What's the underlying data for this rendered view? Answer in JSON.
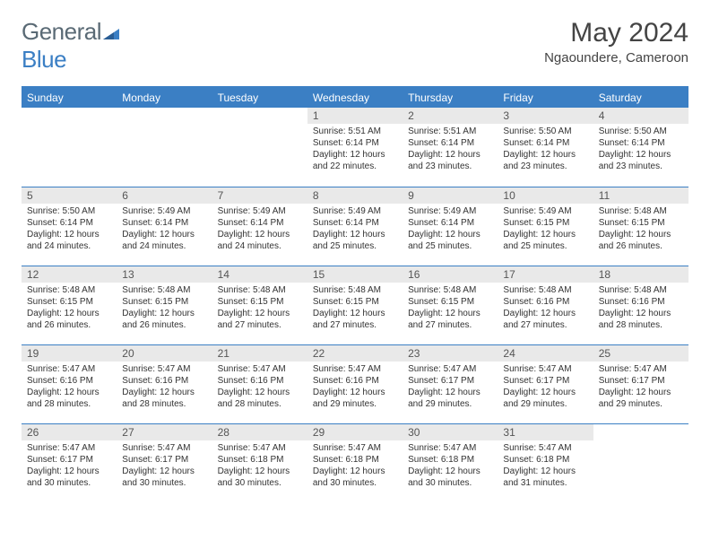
{
  "logo": {
    "text1": "General",
    "text2": "Blue"
  },
  "title": "May 2024",
  "location": "Ngaoundere, Cameroon",
  "colors": {
    "header_bg": "#3b7fc4",
    "header_fg": "#ffffff",
    "daynum_bg": "#e9e9e9",
    "daynum_fg": "#555555",
    "border": "#3b7fc4",
    "page_bg": "#ffffff",
    "body_text": "#333333",
    "logo_gray": "#5a6a75",
    "logo_blue": "#3b7fc4"
  },
  "typography": {
    "title_fontsize": 30,
    "location_fontsize": 15,
    "header_fontsize": 12,
    "daynum_fontsize": 12,
    "cell_fontsize": 10
  },
  "weekdays": [
    "Sunday",
    "Monday",
    "Tuesday",
    "Wednesday",
    "Thursday",
    "Friday",
    "Saturday"
  ],
  "weeks": [
    [
      null,
      null,
      null,
      {
        "day": "1",
        "sunrise": "Sunrise: 5:51 AM",
        "sunset": "Sunset: 6:14 PM",
        "daylight": "Daylight: 12 hours and 22 minutes."
      },
      {
        "day": "2",
        "sunrise": "Sunrise: 5:51 AM",
        "sunset": "Sunset: 6:14 PM",
        "daylight": "Daylight: 12 hours and 23 minutes."
      },
      {
        "day": "3",
        "sunrise": "Sunrise: 5:50 AM",
        "sunset": "Sunset: 6:14 PM",
        "daylight": "Daylight: 12 hours and 23 minutes."
      },
      {
        "day": "4",
        "sunrise": "Sunrise: 5:50 AM",
        "sunset": "Sunset: 6:14 PM",
        "daylight": "Daylight: 12 hours and 23 minutes."
      }
    ],
    [
      {
        "day": "5",
        "sunrise": "Sunrise: 5:50 AM",
        "sunset": "Sunset: 6:14 PM",
        "daylight": "Daylight: 12 hours and 24 minutes."
      },
      {
        "day": "6",
        "sunrise": "Sunrise: 5:49 AM",
        "sunset": "Sunset: 6:14 PM",
        "daylight": "Daylight: 12 hours and 24 minutes."
      },
      {
        "day": "7",
        "sunrise": "Sunrise: 5:49 AM",
        "sunset": "Sunset: 6:14 PM",
        "daylight": "Daylight: 12 hours and 24 minutes."
      },
      {
        "day": "8",
        "sunrise": "Sunrise: 5:49 AM",
        "sunset": "Sunset: 6:14 PM",
        "daylight": "Daylight: 12 hours and 25 minutes."
      },
      {
        "day": "9",
        "sunrise": "Sunrise: 5:49 AM",
        "sunset": "Sunset: 6:14 PM",
        "daylight": "Daylight: 12 hours and 25 minutes."
      },
      {
        "day": "10",
        "sunrise": "Sunrise: 5:49 AM",
        "sunset": "Sunset: 6:15 PM",
        "daylight": "Daylight: 12 hours and 25 minutes."
      },
      {
        "day": "11",
        "sunrise": "Sunrise: 5:48 AM",
        "sunset": "Sunset: 6:15 PM",
        "daylight": "Daylight: 12 hours and 26 minutes."
      }
    ],
    [
      {
        "day": "12",
        "sunrise": "Sunrise: 5:48 AM",
        "sunset": "Sunset: 6:15 PM",
        "daylight": "Daylight: 12 hours and 26 minutes."
      },
      {
        "day": "13",
        "sunrise": "Sunrise: 5:48 AM",
        "sunset": "Sunset: 6:15 PM",
        "daylight": "Daylight: 12 hours and 26 minutes."
      },
      {
        "day": "14",
        "sunrise": "Sunrise: 5:48 AM",
        "sunset": "Sunset: 6:15 PM",
        "daylight": "Daylight: 12 hours and 27 minutes."
      },
      {
        "day": "15",
        "sunrise": "Sunrise: 5:48 AM",
        "sunset": "Sunset: 6:15 PM",
        "daylight": "Daylight: 12 hours and 27 minutes."
      },
      {
        "day": "16",
        "sunrise": "Sunrise: 5:48 AM",
        "sunset": "Sunset: 6:15 PM",
        "daylight": "Daylight: 12 hours and 27 minutes."
      },
      {
        "day": "17",
        "sunrise": "Sunrise: 5:48 AM",
        "sunset": "Sunset: 6:16 PM",
        "daylight": "Daylight: 12 hours and 27 minutes."
      },
      {
        "day": "18",
        "sunrise": "Sunrise: 5:48 AM",
        "sunset": "Sunset: 6:16 PM",
        "daylight": "Daylight: 12 hours and 28 minutes."
      }
    ],
    [
      {
        "day": "19",
        "sunrise": "Sunrise: 5:47 AM",
        "sunset": "Sunset: 6:16 PM",
        "daylight": "Daylight: 12 hours and 28 minutes."
      },
      {
        "day": "20",
        "sunrise": "Sunrise: 5:47 AM",
        "sunset": "Sunset: 6:16 PM",
        "daylight": "Daylight: 12 hours and 28 minutes."
      },
      {
        "day": "21",
        "sunrise": "Sunrise: 5:47 AM",
        "sunset": "Sunset: 6:16 PM",
        "daylight": "Daylight: 12 hours and 28 minutes."
      },
      {
        "day": "22",
        "sunrise": "Sunrise: 5:47 AM",
        "sunset": "Sunset: 6:16 PM",
        "daylight": "Daylight: 12 hours and 29 minutes."
      },
      {
        "day": "23",
        "sunrise": "Sunrise: 5:47 AM",
        "sunset": "Sunset: 6:17 PM",
        "daylight": "Daylight: 12 hours and 29 minutes."
      },
      {
        "day": "24",
        "sunrise": "Sunrise: 5:47 AM",
        "sunset": "Sunset: 6:17 PM",
        "daylight": "Daylight: 12 hours and 29 minutes."
      },
      {
        "day": "25",
        "sunrise": "Sunrise: 5:47 AM",
        "sunset": "Sunset: 6:17 PM",
        "daylight": "Daylight: 12 hours and 29 minutes."
      }
    ],
    [
      {
        "day": "26",
        "sunrise": "Sunrise: 5:47 AM",
        "sunset": "Sunset: 6:17 PM",
        "daylight": "Daylight: 12 hours and 30 minutes."
      },
      {
        "day": "27",
        "sunrise": "Sunrise: 5:47 AM",
        "sunset": "Sunset: 6:17 PM",
        "daylight": "Daylight: 12 hours and 30 minutes."
      },
      {
        "day": "28",
        "sunrise": "Sunrise: 5:47 AM",
        "sunset": "Sunset: 6:18 PM",
        "daylight": "Daylight: 12 hours and 30 minutes."
      },
      {
        "day": "29",
        "sunrise": "Sunrise: 5:47 AM",
        "sunset": "Sunset: 6:18 PM",
        "daylight": "Daylight: 12 hours and 30 minutes."
      },
      {
        "day": "30",
        "sunrise": "Sunrise: 5:47 AM",
        "sunset": "Sunset: 6:18 PM",
        "daylight": "Daylight: 12 hours and 30 minutes."
      },
      {
        "day": "31",
        "sunrise": "Sunrise: 5:47 AM",
        "sunset": "Sunset: 6:18 PM",
        "daylight": "Daylight: 12 hours and 31 minutes."
      },
      null
    ]
  ]
}
